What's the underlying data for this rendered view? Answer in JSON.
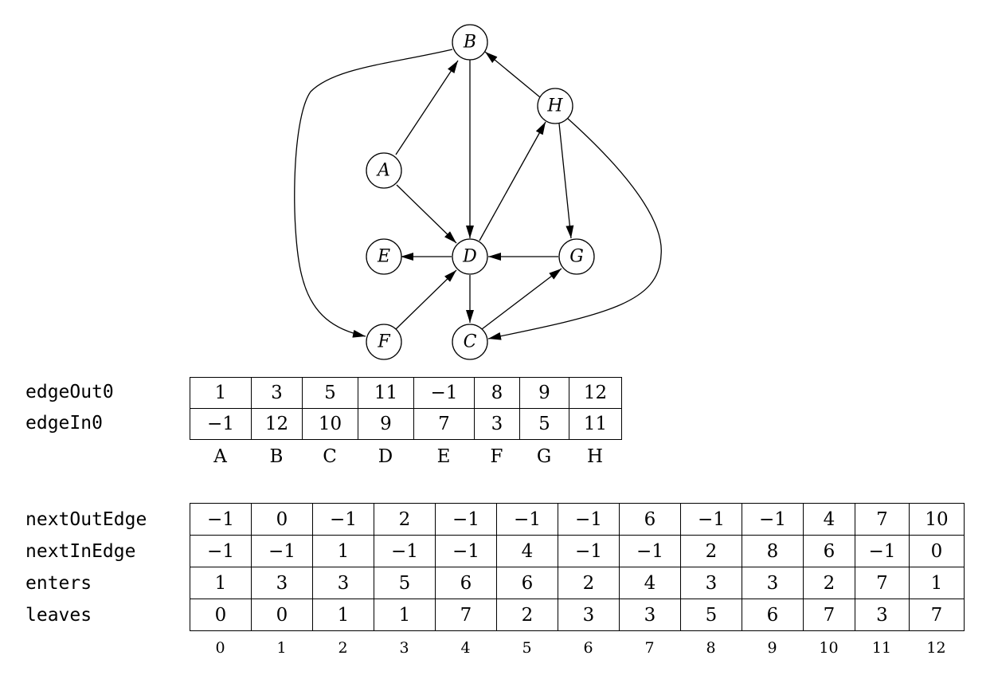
{
  "graph": {
    "nodes": [
      {
        "id": "A",
        "label": "A"
      },
      {
        "id": "B",
        "label": "B"
      },
      {
        "id": "C",
        "label": "C"
      },
      {
        "id": "D",
        "label": "D"
      },
      {
        "id": "E",
        "label": "E"
      },
      {
        "id": "F",
        "label": "F"
      },
      {
        "id": "G",
        "label": "G"
      },
      {
        "id": "H",
        "label": "H"
      }
    ],
    "edges": [
      {
        "from": "A",
        "to": "D"
      },
      {
        "from": "A",
        "to": "B"
      },
      {
        "from": "B",
        "to": "D"
      },
      {
        "from": "B",
        "to": "F"
      },
      {
        "from": "C",
        "to": "G"
      },
      {
        "from": "D",
        "to": "E"
      },
      {
        "from": "D",
        "to": "C"
      },
      {
        "from": "D",
        "to": "H"
      },
      {
        "from": "F",
        "to": "D"
      },
      {
        "from": "G",
        "to": "D"
      },
      {
        "from": "H",
        "to": "B"
      },
      {
        "from": "H",
        "to": "C"
      },
      {
        "from": "H",
        "to": "G"
      }
    ]
  },
  "vertex_table": {
    "rows": [
      {
        "label": "edgeOut0",
        "cells": [
          "1",
          "3",
          "5",
          "11",
          "−1",
          "8",
          "9",
          "12"
        ]
      },
      {
        "label": "edgeIn0",
        "cells": [
          "−1",
          "12",
          "10",
          "9",
          "7",
          "3",
          "5",
          "11"
        ]
      }
    ],
    "column_labels": [
      "A",
      "B",
      "C",
      "D",
      "E",
      "F",
      "G",
      "H"
    ]
  },
  "edge_table": {
    "rows": [
      {
        "label": "nextOutEdge",
        "cells": [
          "−1",
          "0",
          "−1",
          "2",
          "−1",
          "−1",
          "−1",
          "6",
          "−1",
          "−1",
          "4",
          "7",
          "10"
        ]
      },
      {
        "label": "nextInEdge",
        "cells": [
          "−1",
          "−1",
          "1",
          "−1",
          "−1",
          "4",
          "−1",
          "−1",
          "2",
          "8",
          "6",
          "−1",
          "0"
        ]
      },
      {
        "label": "enters",
        "cells": [
          "1",
          "3",
          "3",
          "5",
          "6",
          "6",
          "2",
          "4",
          "3",
          "3",
          "2",
          "7",
          "1"
        ]
      },
      {
        "label": "leaves",
        "cells": [
          "0",
          "0",
          "1",
          "1",
          "7",
          "2",
          "3",
          "3",
          "5",
          "6",
          "7",
          "3",
          "7"
        ]
      }
    ],
    "column_labels": [
      "0",
      "1",
      "2",
      "3",
      "4",
      "5",
      "6",
      "7",
      "8",
      "9",
      "10",
      "11",
      "12"
    ]
  }
}
